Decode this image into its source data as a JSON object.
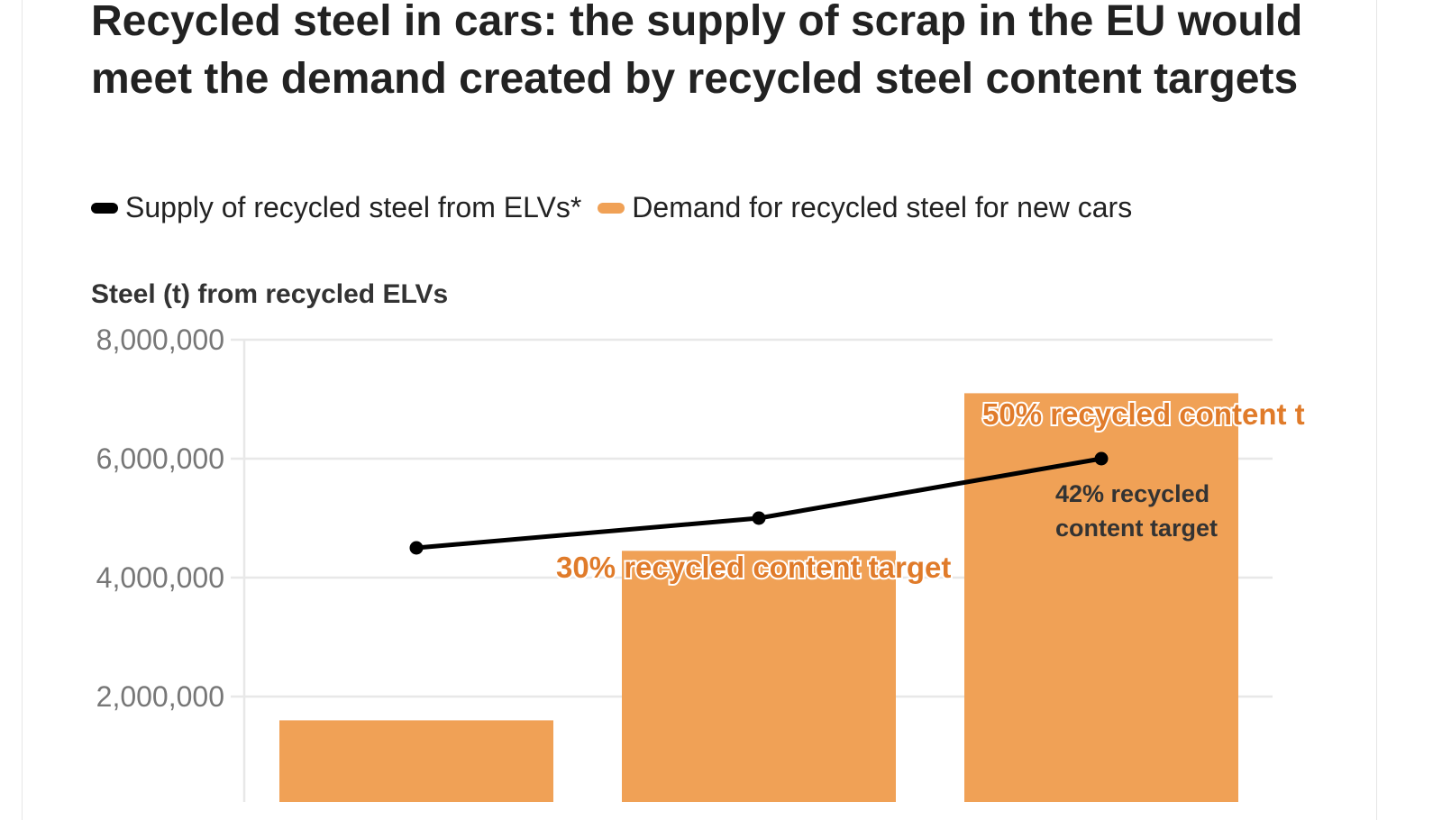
{
  "title": "Recycled steel in cars: the supply of scrap in the EU would meet the demand created by recycled steel content targets",
  "legend": [
    {
      "label": "Supply of recycled steel from ELVs*",
      "color": "#000000"
    },
    {
      "label": "Demand for recycled steel for new cars",
      "color": "#f0a156"
    }
  ],
  "chart_data": {
    "type": "bar",
    "title": "Recycled steel in cars: the supply of scrap in the EU would meet the demand created by recycled steel content targets",
    "ylabel": "Steel (t) from recycled ELVs",
    "xlabel": "",
    "ylim": [
      0,
      8000000
    ],
    "yticks": [
      "8,000,000",
      "6,000,000",
      "4,000,000",
      "2,000,000"
    ],
    "ytick_values": [
      8000000,
      6000000,
      4000000,
      2000000
    ],
    "grid": true,
    "legend_position": "top-left",
    "categories": [
      "",
      "",
      ""
    ],
    "series": [
      {
        "name": "Demand for recycled steel for new cars",
        "type": "bar",
        "color": "#f0a156",
        "values": [
          1600000,
          4450000,
          7100000
        ]
      },
      {
        "name": "Supply of recycled steel from ELVs*",
        "type": "line",
        "color": "#000000",
        "values": [
          4500000,
          5000000,
          6000000
        ]
      }
    ],
    "annotations": [
      {
        "text": "30% recycled content target",
        "category_index": 1,
        "color": "#e07b2a"
      },
      {
        "text": "50% recycled content t",
        "category_index": 2,
        "color": "#e07b2a"
      },
      {
        "text": "42% recycled",
        "category_index": 2,
        "color": "#333333"
      },
      {
        "text": "content target",
        "category_index": 2,
        "color": "#333333"
      }
    ]
  }
}
